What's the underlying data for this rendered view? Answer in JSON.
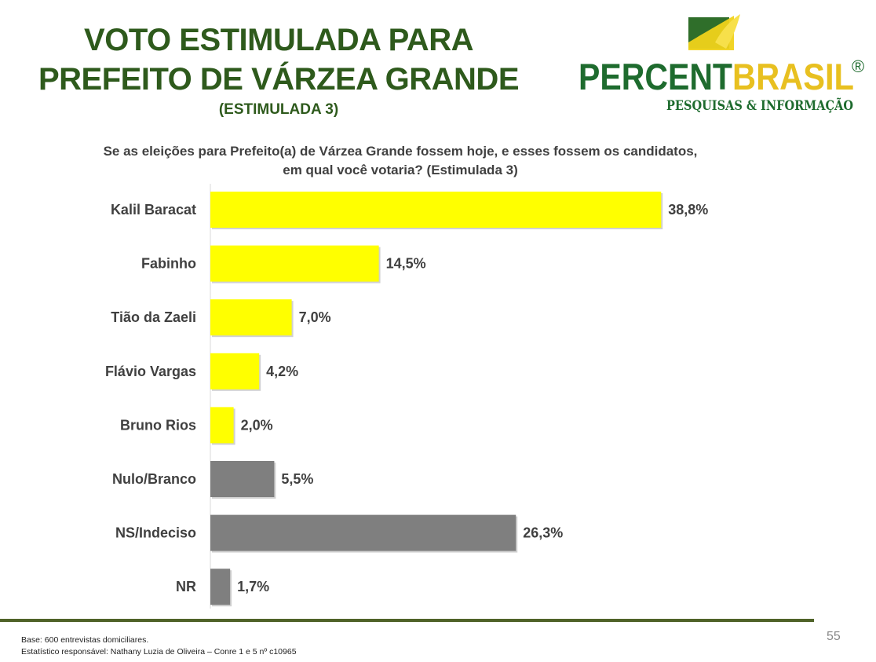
{
  "header": {
    "title_line1": "VOTO ESTIMULADA PARA",
    "title_line2": "PREFEITO DE VÁRZEA GRANDE",
    "subtitle": "(ESTIMULADA 3)"
  },
  "logo": {
    "word1": "PERCENT",
    "word2": "BRASIL",
    "registered": "®",
    "tagline": "PESQUISAS & INFORMAÇÃO",
    "colors": {
      "green": "#1e6b2e",
      "yellow": "#e8c020"
    }
  },
  "question": {
    "line1": "Se as eleições para Prefeito(a) de Várzea Grande fossem hoje, e esses fossem os candidatos,",
    "line2": "em qual você votaria? (Estimulada 3)"
  },
  "chart_data": {
    "type": "bar",
    "orientation": "horizontal",
    "categories": [
      "Kalil Baracat",
      "Fabinho",
      "Tião da Zaeli",
      "Flávio Vargas",
      "Bruno Rios",
      "Nulo/Branco",
      "NS/Indeciso",
      "NR"
    ],
    "values": [
      38.8,
      14.5,
      7.0,
      4.2,
      2.0,
      5.5,
      26.3,
      1.7
    ],
    "value_labels": [
      "38,8%",
      "14,5%",
      "7,0%",
      "4,2%",
      "2,0%",
      "5,5%",
      "26,3%",
      "1,7%"
    ],
    "bar_colors": [
      "#ffff00",
      "#ffff00",
      "#ffff00",
      "#ffff00",
      "#ffff00",
      "#7f7f7f",
      "#7f7f7f",
      "#7f7f7f"
    ],
    "label_color": "#404040"
  },
  "footer": {
    "line1": "Base: 600 entrevistas domiciliares.",
    "line2": "Estatístico responsável: Nathany Luzia de Oliveira – Conre 1 e 5 nº c10965",
    "page": "55"
  }
}
